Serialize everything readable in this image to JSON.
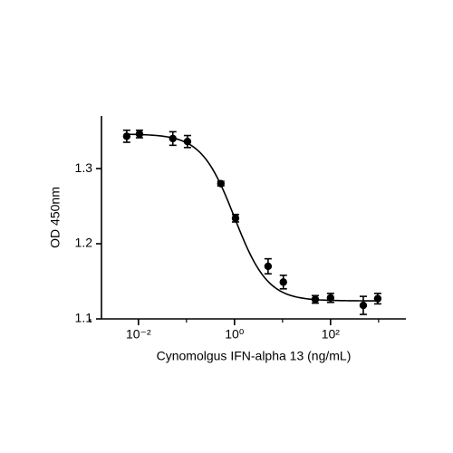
{
  "chart_data": {
    "type": "scatter",
    "x_label": "Cynomolgus IFN-alpha 13 (ng/mL)",
    "y_label": "OD 450nm",
    "x_scale": "log",
    "x": [
      0.0057,
      0.0105,
      0.052,
      0.105,
      0.52,
      1.05,
      5.0,
      10.4,
      48,
      100,
      480,
      960
    ],
    "series": [
      {
        "color": "#000000",
        "values": [
          1.343,
          1.346,
          1.34,
          1.336,
          1.28,
          1.234,
          1.17,
          1.149,
          1.126,
          1.128,
          1.118,
          1.127
        ],
        "errors": [
          0.008,
          0.005,
          0.009,
          0.008,
          0.003,
          0.005,
          0.01,
          0.009,
          0.005,
          0.006,
          0.012,
          0.007
        ]
      }
    ],
    "fit": {
      "top": 1.346,
      "bottom": 1.124,
      "ec50": 1.0,
      "hill": 1.26
    },
    "xlim": [
      0.0017,
      3700
    ],
    "xticks": [
      {
        "value": 0.01,
        "label": "10⁻²"
      },
      {
        "value": 1,
        "label": "10⁰"
      },
      {
        "value": 100,
        "label": "10²"
      }
    ],
    "minor_xticks": [
      0.001,
      0.1,
      10,
      1000
    ],
    "ylim": [
      1.1,
      1.37
    ],
    "yticks": [
      1.1,
      1.2,
      1.3
    ],
    "grid": false
  }
}
